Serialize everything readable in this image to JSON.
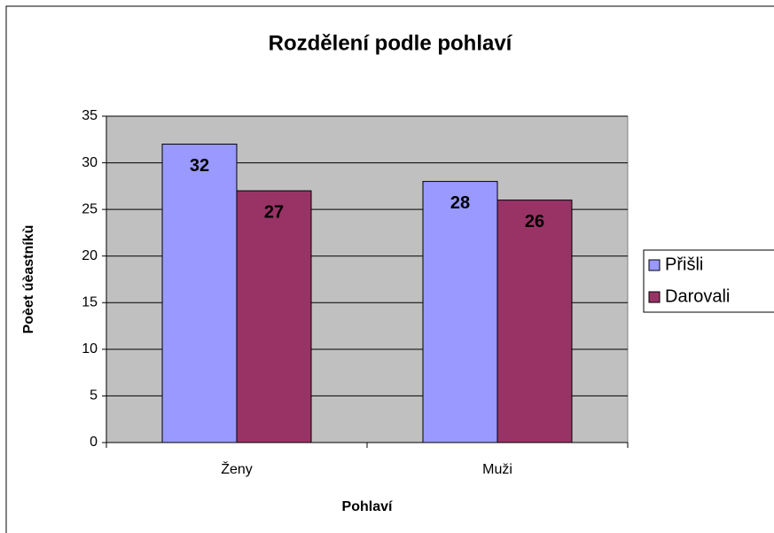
{
  "chart_data": {
    "type": "bar",
    "title": "Rozdělení podle pohlaví",
    "x_label": "Pohlaví",
    "y_label": "Poèet úèastníkù",
    "categories": [
      "Ženy",
      "Muži"
    ],
    "series": [
      {
        "name": "Přišli",
        "color": "#9999ff",
        "values": [
          32,
          28
        ]
      },
      {
        "name": "Darovali",
        "color": "#993366",
        "values": [
          27,
          26
        ]
      }
    ],
    "ylim": [
      0,
      35
    ],
    "yticks": [
      0,
      5,
      10,
      15,
      20,
      25,
      30,
      35
    ],
    "grid": true,
    "legend": "right"
  }
}
